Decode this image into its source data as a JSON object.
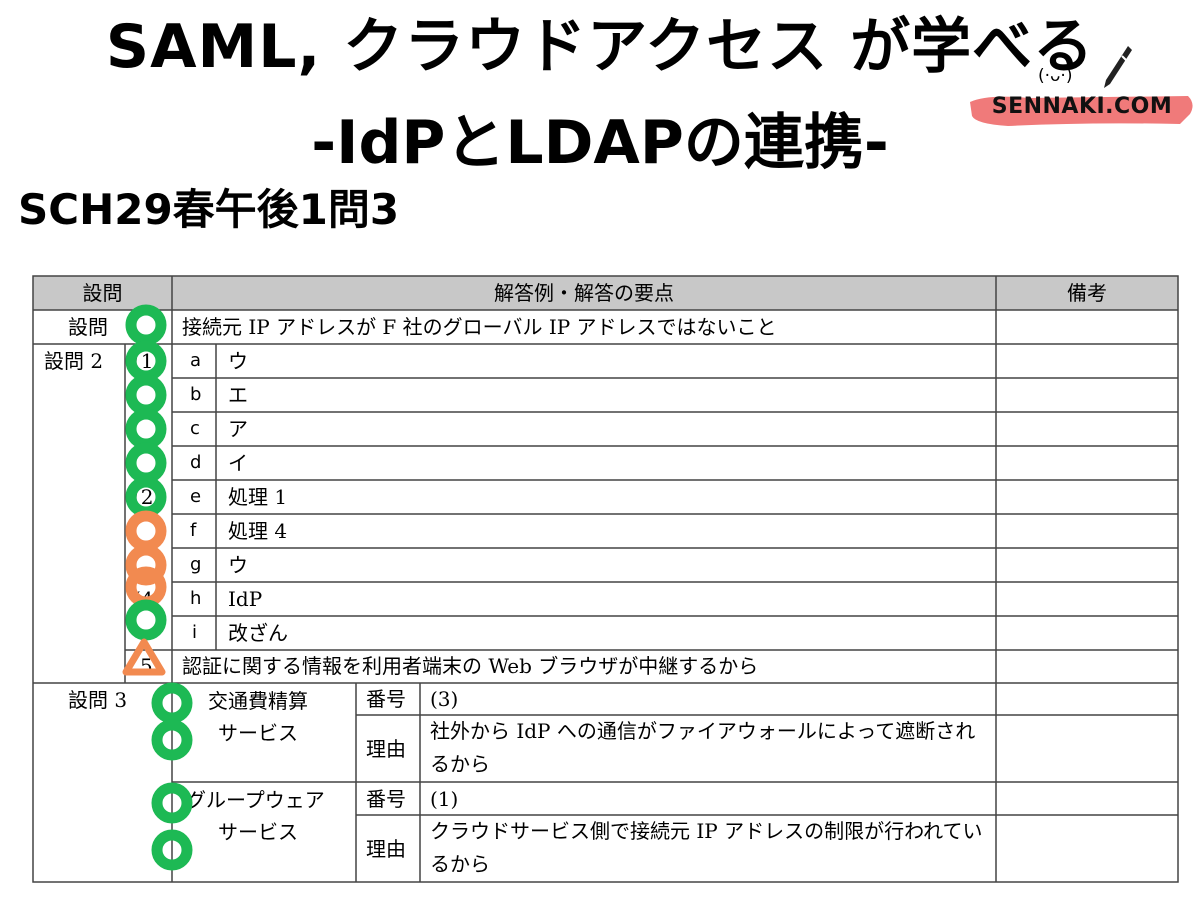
{
  "header": {
    "title_line1": "SAML, クラウドアクセス が学べる",
    "title_line2": "-IdPとLDAPの連携-",
    "exam": "SCH29春午後1問3"
  },
  "logo": {
    "face": "(·ᴗ·)",
    "text": "SENNAKI.COM",
    "brush_color": "#f07a7a"
  },
  "table": {
    "col_headers": {
      "question": "設問",
      "answer": "解答例・解答の要点",
      "notes": "備考"
    },
    "q1": {
      "label": "設問",
      "answer": "接続元 IP アドレスが F 社のグローバル IP アドレスではないこと"
    },
    "q2": {
      "label": "設問 2",
      "subs": [
        {
          "sub": "(1",
          "letter": "a",
          "answer": "ウ"
        },
        {
          "sub": "",
          "letter": "b",
          "answer": "エ"
        },
        {
          "sub": "",
          "letter": "c",
          "answer": "ア"
        },
        {
          "sub": "",
          "letter": "d",
          "answer": "イ"
        },
        {
          "sub": "(2",
          "letter": "e",
          "answer": "処理 1"
        },
        {
          "sub": "",
          "letter": "f",
          "answer": "処理 4"
        },
        {
          "sub": "",
          "letter": "g",
          "answer": "ウ"
        },
        {
          "sub": "(4",
          "letter": "h",
          "answer": "IdP"
        },
        {
          "sub": "",
          "letter": "i",
          "answer": "改ざん"
        }
      ],
      "sub5_label": "5",
      "sub5_answer": "認証に関する情報を利用者端末の Web ブラウザが中継するから"
    },
    "q3": {
      "label": "設問 3",
      "svc1_line1": "交通費精算",
      "svc1_line2": "サービス",
      "svc2_line1": "グループウェア",
      "svc2_line2": "サービス",
      "num_label": "番号",
      "reason_label": "理由",
      "svc1_num": "(3)",
      "svc1_reason": "社外から IdP への通信がファイアウォールによって遮断されるから",
      "svc2_num": "(1)",
      "svc2_reason": "クラウドサービス側で接続元 IP アドレスの制限が行われているから"
    }
  },
  "marks": {
    "green": "#1db954",
    "orange": "#f28a50",
    "header_bg": "#c8c8c8"
  }
}
